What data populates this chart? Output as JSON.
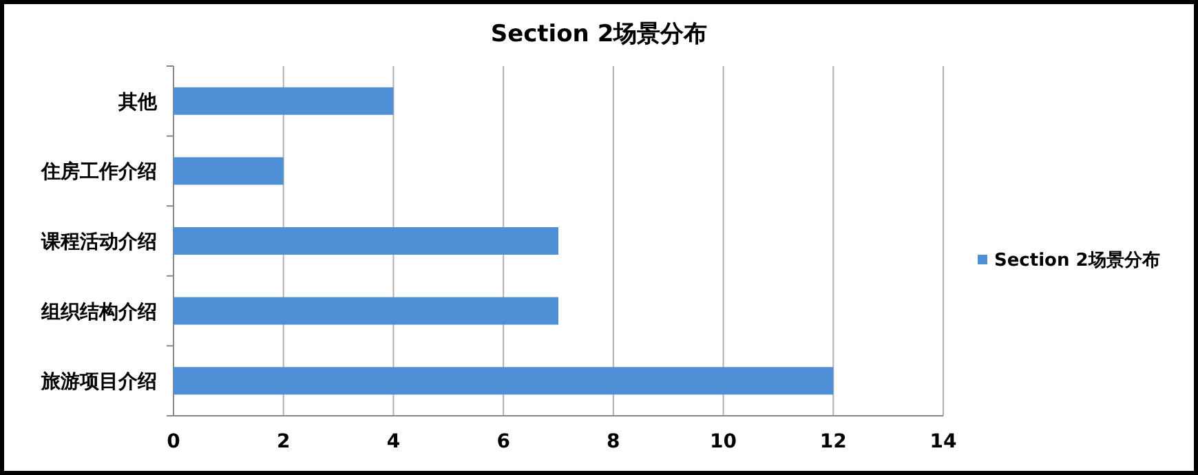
{
  "chart_data": {
    "type": "bar",
    "orientation": "horizontal",
    "title": "Section 2场景分布",
    "categories": [
      "其他",
      "住房工作介绍",
      "课程活动介绍",
      "组织结构介绍",
      "旅游项目介绍"
    ],
    "series": [
      {
        "name": "Section 2场景分布",
        "color": "#4f8fd6",
        "values": [
          4,
          2,
          7,
          7,
          12
        ]
      }
    ],
    "xlim": [
      0,
      14
    ],
    "xticks": [
      0,
      2,
      4,
      6,
      8,
      10,
      12,
      14
    ],
    "grid": "x",
    "legend": "right"
  }
}
